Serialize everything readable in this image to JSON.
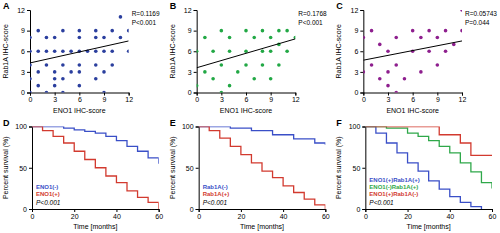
{
  "chart_data": [
    {
      "panel": "A",
      "type": "scatter",
      "marker": "circle",
      "color": "#2b3f9e",
      "x_label": "ENO1 IHC-score",
      "y_label": "Rab1A IHC-score",
      "annotations": [
        "R=0.1169",
        "P<0.001"
      ],
      "x": [
        0,
        0,
        0,
        0,
        0,
        1,
        1,
        1,
        1,
        2,
        2,
        2,
        2,
        3,
        3,
        3,
        3,
        3,
        4,
        4,
        4,
        4,
        4,
        5,
        5,
        6,
        6,
        6,
        6,
        6,
        6,
        7,
        8,
        8,
        8,
        8,
        8,
        9,
        9,
        9,
        9,
        10,
        10,
        10,
        11,
        11,
        12,
        12
      ],
      "values": [
        0,
        2,
        4,
        6,
        8,
        1,
        3,
        6,
        9,
        0,
        4,
        6,
        8,
        1,
        2,
        3,
        6,
        8,
        0,
        2,
        4,
        6,
        9,
        3,
        6,
        1,
        3,
        4,
        6,
        8,
        9,
        6,
        2,
        4,
        6,
        8,
        9,
        0,
        3,
        6,
        8,
        4,
        6,
        9,
        8,
        11,
        6,
        9
      ],
      "trend_line": {
        "x": [
          0,
          12
        ],
        "values": [
          4.3,
          7.5
        ]
      },
      "xlim": [
        0,
        12
      ],
      "ylim": [
        0,
        12
      ],
      "xticks": [
        0,
        3,
        6,
        9,
        12
      ],
      "yticks": [
        0,
        3,
        6,
        9,
        12
      ]
    },
    {
      "panel": "B",
      "type": "scatter",
      "marker": "circle",
      "color": "#22a845",
      "x_label": "ENO1 IHC-score",
      "y_label": "Rab1A IHC-score",
      "annotations": [
        "R=0.1768",
        "P<0.001"
      ],
      "x": [
        0,
        0,
        1,
        1,
        2,
        2,
        3,
        3,
        3,
        4,
        4,
        4,
        5,
        6,
        6,
        6,
        7,
        7,
        8,
        8,
        8,
        9,
        9,
        9,
        10,
        10,
        10,
        11,
        11,
        12
      ],
      "values": [
        1,
        6,
        3,
        8,
        2,
        6,
        0,
        4,
        9,
        1,
        6,
        8,
        3,
        4,
        6,
        9,
        2,
        8,
        4,
        6,
        9,
        2,
        6,
        8,
        4,
        7,
        9,
        6,
        9,
        8
      ],
      "trend_line": {
        "x": [
          0,
          12
        ],
        "values": [
          3.6,
          7.8
        ]
      },
      "xlim": [
        0,
        12
      ],
      "ylim": [
        0,
        12
      ],
      "xticks": [
        0,
        3,
        6,
        9,
        12
      ],
      "yticks": [
        0,
        3,
        6,
        9,
        12
      ]
    },
    {
      "panel": "C",
      "type": "scatter",
      "marker": "circle",
      "color": "#8e1f8e",
      "x_label": "ENO1 IHC-score",
      "y_label": "Rab1A IHC-score",
      "annotations": [
        "R=0.05743",
        "P=0.044"
      ],
      "x": [
        0,
        0,
        1,
        1,
        2,
        2,
        3,
        3,
        3,
        4,
        4,
        4,
        5,
        6,
        6,
        7,
        7,
        8,
        8,
        9,
        9,
        10,
        10,
        11,
        12,
        12
      ],
      "values": [
        3,
        8,
        4,
        9,
        2,
        7,
        1,
        3,
        6,
        0,
        4,
        8,
        2,
        6,
        9,
        3,
        8,
        6,
        9,
        4,
        8,
        6,
        9,
        7,
        9,
        12
      ],
      "trend_line": {
        "x": [
          0,
          12
        ],
        "values": [
          4.7,
          7.5
        ]
      },
      "xlim": [
        0,
        12
      ],
      "ylim": [
        0,
        12
      ],
      "xticks": [
        0,
        3,
        6,
        9,
        12
      ],
      "yticks": [
        0,
        3,
        6,
        9,
        12
      ]
    },
    {
      "panel": "D",
      "type": "line",
      "line_style": "step",
      "x_label": "Time [months]",
      "y_label": "Percent survival (%)",
      "annotations": [
        "P<0.001"
      ],
      "series": [
        {
          "name": "ENO1(-)",
          "color": "#3a4fc7",
          "x": [
            0,
            10,
            15,
            20,
            25,
            30,
            35,
            40,
            45,
            50,
            55,
            60
          ],
          "values": [
            100,
            100,
            98,
            96,
            94,
            92,
            88,
            83,
            76,
            70,
            62,
            55
          ]
        },
        {
          "name": "ENO1(+)",
          "color": "#d23a2f",
          "x": [
            0,
            5,
            10,
            15,
            20,
            25,
            30,
            35,
            40,
            45,
            50,
            55,
            60
          ],
          "values": [
            100,
            95,
            88,
            80,
            70,
            60,
            50,
            40,
            32,
            22,
            14,
            8,
            0
          ]
        }
      ],
      "xlim": [
        0,
        60
      ],
      "ylim": [
        0,
        100
      ],
      "xticks": [
        0,
        20,
        40,
        60
      ],
      "yticks": [
        0,
        50,
        100
      ]
    },
    {
      "panel": "E",
      "type": "line",
      "line_style": "step",
      "x_label": "Time [months]",
      "y_label": "Percent survival (%)",
      "annotations": [
        "P<0.001"
      ],
      "series": [
        {
          "name": "Rab1A(-)",
          "color": "#3a4fc7",
          "x": [
            0,
            15,
            25,
            35,
            45,
            55,
            60
          ],
          "values": [
            100,
            98,
            95,
            90,
            85,
            80,
            78
          ]
        },
        {
          "name": "Rab1A(+)",
          "color": "#d23a2f",
          "x": [
            0,
            5,
            10,
            15,
            20,
            25,
            30,
            35,
            40,
            45,
            50,
            55,
            60
          ],
          "values": [
            100,
            95,
            86,
            76,
            66,
            56,
            46,
            38,
            28,
            20,
            12,
            5,
            0
          ]
        }
      ],
      "xlim": [
        0,
        60
      ],
      "ylim": [
        0,
        100
      ],
      "xticks": [
        0,
        20,
        40,
        60
      ],
      "yticks": [
        0,
        50,
        100
      ]
    },
    {
      "panel": "F",
      "type": "line",
      "line_style": "step",
      "x_label": "Time [months]",
      "y_label": "Percent survival (%)",
      "annotations": [
        "P<0.001"
      ],
      "series": [
        {
          "name": "ENO1(+)Rab1A(+)",
          "color": "#3a4fc7",
          "x": [
            0,
            5,
            10,
            15,
            20,
            25,
            30,
            35,
            40,
            45,
            50,
            55
          ],
          "values": [
            100,
            92,
            80,
            68,
            56,
            46,
            34,
            24,
            15,
            8,
            3,
            0
          ]
        },
        {
          "name": "ENO1(-)Rab1A(+)",
          "color": "#2fa84a",
          "x": [
            0,
            10,
            20,
            25,
            30,
            35,
            40,
            45,
            50,
            55,
            60
          ],
          "values": [
            100,
            98,
            92,
            88,
            83,
            76,
            68,
            56,
            45,
            32,
            25
          ]
        },
        {
          "name": "ENO1(+)Rab1A(-)",
          "color": "#d23a2f",
          "x": [
            0,
            25,
            35,
            45,
            50,
            60
          ],
          "values": [
            100,
            100,
            90,
            80,
            65,
            65
          ]
        }
      ],
      "xlim": [
        0,
        60
      ],
      "ylim": [
        0,
        100
      ],
      "xticks": [
        0,
        20,
        40,
        60
      ],
      "yticks": [
        0,
        50,
        100
      ]
    }
  ]
}
